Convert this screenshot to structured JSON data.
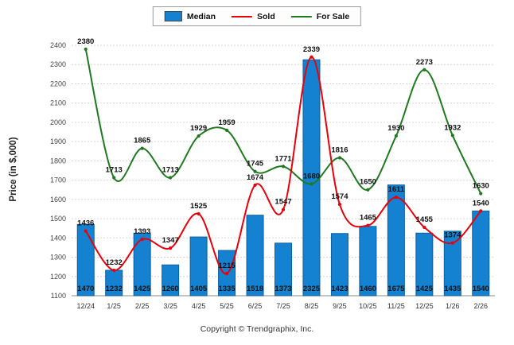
{
  "legend": {
    "items": [
      {
        "label": "Median",
        "type": "bar",
        "color": "#1482d0"
      },
      {
        "label": "Sold",
        "type": "line",
        "color": "#e8000b"
      },
      {
        "label": "For Sale",
        "type": "line",
        "color": "#1f7a1f"
      }
    ]
  },
  "y_axis": {
    "title": "Price (in $,000)",
    "ticks": [
      1100,
      1200,
      1300,
      1400,
      1500,
      1600,
      1700,
      1800,
      1900,
      2000,
      2100,
      2200,
      2300,
      2400
    ]
  },
  "footer": {
    "text": "Copyright © Trendgraphix, Inc."
  },
  "chart_data": {
    "type": "combo-bar-line",
    "categories": [
      "12/24",
      "1/25",
      "2/25",
      "3/25",
      "4/25",
      "5/25",
      "6/25",
      "7/25",
      "8/25",
      "9/25",
      "10/25",
      "11/25",
      "12/25",
      "1/26",
      "2/26"
    ],
    "series": [
      {
        "name": "Median",
        "type": "bar",
        "color": "#1482d0",
        "values": [
          1470,
          1232,
          1425,
          1260,
          1405,
          1335,
          1518,
          1373,
          2325,
          1423,
          1460,
          1675,
          1425,
          1435,
          1540
        ]
      },
      {
        "name": "Sold",
        "type": "line",
        "color": "#e8000b",
        "values": [
          1436,
          1232,
          1393,
          1347,
          1525,
          1215,
          1674,
          1547,
          2339,
          1574,
          1465,
          1611,
          1455,
          1374,
          1540
        ]
      },
      {
        "name": "For Sale",
        "type": "line",
        "color": "#1f7a1f",
        "values": [
          2380,
          1713,
          1865,
          1713,
          1929,
          1959,
          1745,
          1771,
          1680,
          1816,
          1650,
          1930,
          2273,
          1932,
          1630
        ]
      }
    ],
    "ylabel": "Price (in $,000)",
    "ylim": [
      1100,
      2400
    ],
    "ytick_step": 100,
    "grid": true,
    "legend_position": "top",
    "footer": "Copyright © Trendgraphix, Inc."
  }
}
